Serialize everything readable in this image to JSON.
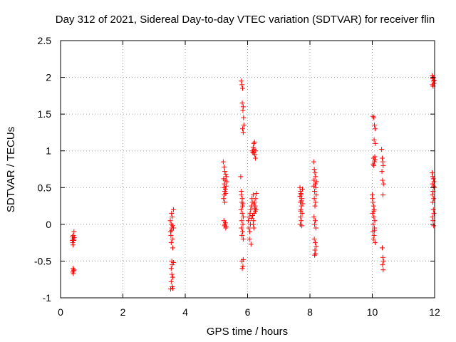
{
  "chart_data": {
    "type": "scatter",
    "title": "Day 312 of 2021, Sidereal Day-to-day VTEC variation (SDTVAR) for receiver flin",
    "xlabel": "GPS time / hours",
    "ylabel": "SDTVAR / TECUs",
    "xlim": [
      0,
      12
    ],
    "ylim": [
      -1,
      2.5
    ],
    "xticks": [
      0,
      2,
      4,
      6,
      8,
      10,
      12
    ],
    "xtick_labels": [
      "0",
      "2",
      "4",
      "6",
      "8",
      "10",
      "12"
    ],
    "yticks": [
      -1,
      -0.5,
      0,
      0.5,
      1,
      1.5,
      2,
      2.5
    ],
    "ytick_labels": [
      "-1",
      "-0.5",
      "0",
      "0.5",
      "1",
      "1.5",
      "2",
      "2.5"
    ],
    "grid": true,
    "marker": "+",
    "color": "#ff0000",
    "series": [
      {
        "name": "SDTVAR",
        "points": [
          [
            0.38,
            -0.17
          ],
          [
            0.4,
            -0.2
          ],
          [
            0.42,
            -0.22
          ],
          [
            0.39,
            -0.25
          ],
          [
            0.44,
            -0.18
          ],
          [
            0.41,
            -0.15
          ],
          [
            0.43,
            -0.1
          ],
          [
            0.4,
            -0.28
          ],
          [
            0.42,
            -0.2
          ],
          [
            0.38,
            -0.22
          ],
          [
            0.4,
            -0.6
          ],
          [
            0.42,
            -0.63
          ],
          [
            0.39,
            -0.65
          ],
          [
            0.43,
            -0.62
          ],
          [
            0.41,
            -0.67
          ],
          [
            3.52,
            0.05
          ],
          [
            3.55,
            0.0
          ],
          [
            3.57,
            -0.05
          ],
          [
            3.53,
            -0.1
          ],
          [
            3.6,
            -0.02
          ],
          [
            3.58,
            0.1
          ],
          [
            3.62,
            0.2
          ],
          [
            3.56,
            0.15
          ],
          [
            3.54,
            -0.15
          ],
          [
            3.59,
            -0.2
          ],
          [
            3.55,
            -0.25
          ],
          [
            3.6,
            -0.32
          ],
          [
            3.57,
            -0.5
          ],
          [
            3.62,
            -0.52
          ],
          [
            3.58,
            -0.55
          ],
          [
            3.55,
            -0.6
          ],
          [
            3.57,
            -0.68
          ],
          [
            3.6,
            -0.72
          ],
          [
            3.55,
            -0.78
          ],
          [
            3.58,
            -0.85
          ],
          [
            3.6,
            -0.87
          ],
          [
            3.53,
            -0.88
          ],
          [
            3.62,
            -0.05
          ],
          [
            3.56,
            -0.08
          ],
          [
            5.22,
            0.85
          ],
          [
            5.25,
            0.78
          ],
          [
            5.27,
            0.72
          ],
          [
            5.3,
            0.68
          ],
          [
            5.23,
            0.62
          ],
          [
            5.28,
            0.6
          ],
          [
            5.32,
            0.65
          ],
          [
            5.26,
            0.55
          ],
          [
            5.24,
            0.5
          ],
          [
            5.29,
            0.48
          ],
          [
            5.27,
            0.45
          ],
          [
            5.25,
            0.4
          ],
          [
            5.31,
            0.52
          ],
          [
            5.33,
            0.58
          ],
          [
            5.23,
            0.35
          ],
          [
            5.27,
            0.3
          ],
          [
            5.3,
            0.42
          ],
          [
            5.24,
            0.05
          ],
          [
            5.27,
            0.0
          ],
          [
            5.3,
            -0.05
          ],
          [
            5.26,
            -0.02
          ],
          [
            5.29,
            0.02
          ],
          [
            5.31,
            -0.03
          ],
          [
            5.78,
            0.65
          ],
          [
            5.8,
            0.4
          ],
          [
            5.82,
            0.3
          ],
          [
            5.84,
            0.25
          ],
          [
            5.79,
            0.2
          ],
          [
            5.83,
            0.15
          ],
          [
            5.86,
            0.1
          ],
          [
            5.81,
            0.05
          ],
          [
            5.85,
            0.0
          ],
          [
            5.8,
            -0.05
          ],
          [
            5.84,
            -0.1
          ],
          [
            5.82,
            -0.15
          ],
          [
            5.86,
            -0.2
          ],
          [
            5.8,
            0.45
          ],
          [
            5.83,
            0.35
          ],
          [
            5.85,
            0.28
          ],
          [
            5.82,
            -0.5
          ],
          [
            5.85,
            -0.57
          ],
          [
            5.83,
            -0.6
          ],
          [
            5.86,
            -0.48
          ],
          [
            5.8,
            1.95
          ],
          [
            5.82,
            1.9
          ],
          [
            5.84,
            1.85
          ],
          [
            5.83,
            1.65
          ],
          [
            5.86,
            1.6
          ],
          [
            5.85,
            1.55
          ],
          [
            5.87,
            1.45
          ],
          [
            5.84,
            1.3
          ],
          [
            5.86,
            1.25
          ],
          [
            5.88,
            1.35
          ],
          [
            6.02,
            0.05
          ],
          [
            6.05,
            0.1
          ],
          [
            6.08,
            0.15
          ],
          [
            6.1,
            0.2
          ],
          [
            6.04,
            -0.05
          ],
          [
            6.07,
            -0.1
          ],
          [
            6.12,
            0.25
          ],
          [
            6.15,
            0.3
          ],
          [
            6.09,
            0.0
          ],
          [
            6.06,
            -0.2
          ],
          [
            6.11,
            -0.27
          ],
          [
            6.14,
            0.35
          ],
          [
            6.18,
            0.4
          ],
          [
            6.2,
            0.28
          ],
          [
            6.23,
            0.22
          ],
          [
            6.25,
            0.18
          ],
          [
            6.16,
            0.12
          ],
          [
            6.13,
            0.08
          ],
          [
            6.19,
            0.05
          ],
          [
            6.22,
            0.3
          ],
          [
            6.26,
            0.35
          ],
          [
            6.28,
            0.42
          ],
          [
            6.24,
            0.25
          ],
          [
            6.21,
            0.15
          ],
          [
            6.27,
            0.2
          ],
          [
            6.18,
            0.0
          ],
          [
            6.2,
            -0.05
          ],
          [
            6.15,
            1.0
          ],
          [
            6.18,
            1.05
          ],
          [
            6.2,
            1.1
          ],
          [
            6.22,
            1.12
          ],
          [
            6.17,
            0.98
          ],
          [
            6.23,
            0.95
          ],
          [
            6.25,
            0.9
          ],
          [
            6.21,
            1.02
          ],
          [
            6.26,
            1.0
          ],
          [
            6.19,
            0.97
          ],
          [
            7.68,
            0.5
          ],
          [
            7.7,
            0.45
          ],
          [
            7.72,
            0.4
          ],
          [
            7.74,
            0.35
          ],
          [
            7.69,
            0.3
          ],
          [
            7.73,
            0.25
          ],
          [
            7.71,
            0.2
          ],
          [
            7.75,
            0.15
          ],
          [
            7.7,
            0.1
          ],
          [
            7.72,
            0.05
          ],
          [
            7.69,
            0.0
          ],
          [
            7.74,
            -0.02
          ],
          [
            7.76,
            0.48
          ],
          [
            7.71,
            0.42
          ],
          [
            7.73,
            0.32
          ],
          [
            7.77,
            0.28
          ],
          [
            7.7,
            0.18
          ],
          [
            7.68,
            0.38
          ],
          [
            8.12,
            0.85
          ],
          [
            8.14,
            0.75
          ],
          [
            8.16,
            0.7
          ],
          [
            8.18,
            0.65
          ],
          [
            8.13,
            0.6
          ],
          [
            8.17,
            0.55
          ],
          [
            8.19,
            0.5
          ],
          [
            8.15,
            0.45
          ],
          [
            8.2,
            0.4
          ],
          [
            8.14,
            0.35
          ],
          [
            8.18,
            0.3
          ],
          [
            8.16,
            0.25
          ],
          [
            8.13,
            0.1
          ],
          [
            8.17,
            0.05
          ],
          [
            8.15,
            0.0
          ],
          [
            8.19,
            -0.05
          ],
          [
            8.14,
            -0.2
          ],
          [
            8.17,
            -0.25
          ],
          [
            8.2,
            -0.3
          ],
          [
            8.16,
            -0.35
          ],
          [
            8.18,
            -0.4
          ],
          [
            8.15,
            -0.42
          ],
          [
            8.12,
            0.52
          ],
          [
            8.21,
            0.58
          ],
          [
            10.0,
            0.4
          ],
          [
            10.02,
            0.3
          ],
          [
            10.04,
            0.25
          ],
          [
            10.06,
            0.2
          ],
          [
            10.01,
            0.15
          ],
          [
            10.05,
            0.1
          ],
          [
            10.08,
            0.05
          ],
          [
            10.03,
            0.0
          ],
          [
            10.07,
            -0.05
          ],
          [
            10.02,
            -0.1
          ],
          [
            10.06,
            -0.15
          ],
          [
            10.04,
            -0.2
          ],
          [
            10.09,
            -0.25
          ],
          [
            10.01,
            0.35
          ],
          [
            10.05,
            0.18
          ],
          [
            10.07,
            -0.08
          ],
          [
            10.02,
            1.47
          ],
          [
            10.05,
            1.45
          ],
          [
            10.07,
            1.35
          ],
          [
            10.09,
            1.3
          ],
          [
            10.06,
            1.15
          ],
          [
            10.1,
            1.1
          ],
          [
            10.04,
            0.9
          ],
          [
            10.07,
            0.85
          ],
          [
            10.09,
            0.88
          ],
          [
            10.03,
            0.82
          ],
          [
            10.05,
            0.8
          ],
          [
            10.08,
            0.92
          ],
          [
            10.3,
            1.02
          ],
          [
            10.32,
            0.9
          ],
          [
            10.34,
            0.85
          ],
          [
            10.35,
            0.8
          ],
          [
            10.31,
            0.72
          ],
          [
            10.33,
            0.6
          ],
          [
            10.36,
            0.55
          ],
          [
            10.34,
            0.4
          ],
          [
            10.32,
            -0.32
          ],
          [
            10.34,
            -0.45
          ],
          [
            10.36,
            -0.5
          ],
          [
            10.33,
            -0.55
          ],
          [
            10.35,
            -0.62
          ],
          [
            11.92,
            2.02
          ],
          [
            11.94,
            1.98
          ],
          [
            11.96,
            1.95
          ],
          [
            11.98,
            1.92
          ],
          [
            11.93,
            1.9
          ],
          [
            11.97,
            2.0
          ],
          [
            11.99,
            1.96
          ],
          [
            11.95,
            1.88
          ],
          [
            11.92,
            0.7
          ],
          [
            11.94,
            0.65
          ],
          [
            11.96,
            0.62
          ],
          [
            11.98,
            0.58
          ],
          [
            11.93,
            0.55
          ],
          [
            11.97,
            0.52
          ],
          [
            11.99,
            0.5
          ],
          [
            11.95,
            0.45
          ],
          [
            11.93,
            0.4
          ],
          [
            11.97,
            0.35
          ],
          [
            11.94,
            0.3
          ],
          [
            11.96,
            0.2
          ],
          [
            11.98,
            0.15
          ],
          [
            11.93,
            0.1
          ],
          [
            11.95,
            0.05
          ],
          [
            11.97,
            -0.02
          ]
        ]
      }
    ]
  }
}
